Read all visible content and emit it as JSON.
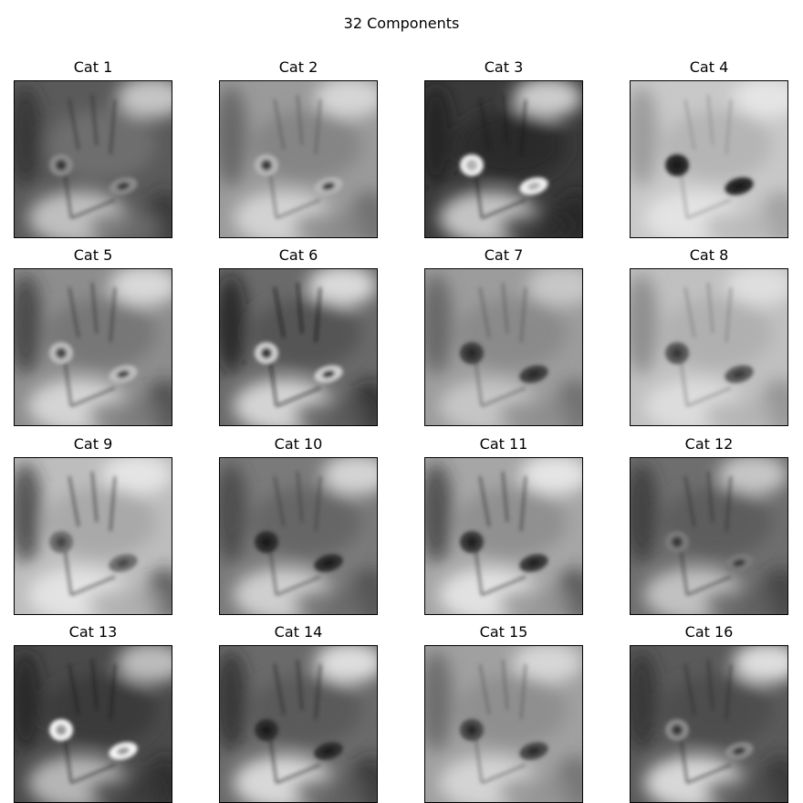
{
  "figure": {
    "title": "32 Components"
  },
  "panels": [
    {
      "label": "Cat 1",
      "tone": {
        "bg": "#5a5a5a",
        "mid": "#6e6e6e",
        "hi": "#d8d8d8",
        "lo": "#2a2a2a",
        "eye": "#8a8a8a",
        "pupil": "#3a3a3a"
      }
    },
    {
      "label": "Cat 2",
      "tone": {
        "bg": "#9a9a9a",
        "mid": "#858585",
        "hi": "#e0e0e0",
        "lo": "#555555",
        "eye": "#b5b5b5",
        "pupil": "#3d3d3d"
      }
    },
    {
      "label": "Cat 3",
      "tone": {
        "bg": "#3a3a3a",
        "mid": "#2c2c2c",
        "hi": "#e6e6e6",
        "lo": "#1a1a1a",
        "eye": "#eeeeee",
        "pupil": "#b0b0b0"
      }
    },
    {
      "label": "Cat 4",
      "tone": {
        "bg": "#c8c8c8",
        "mid": "#b5b5b5",
        "hi": "#eaeaea",
        "lo": "#8a8a8a",
        "eye": "#2a2a2a",
        "pupil": "#1a1a1a"
      }
    },
    {
      "label": "Cat 5",
      "tone": {
        "bg": "#8d8d8d",
        "mid": "#777777",
        "hi": "#e6e6e6",
        "lo": "#2f2f2f",
        "eye": "#bdbdbd",
        "pupil": "#4a4a4a"
      }
    },
    {
      "label": "Cat 6",
      "tone": {
        "bg": "#6a6a6a",
        "mid": "#555555",
        "hi": "#eeeeee",
        "lo": "#111111",
        "eye": "#cfcfcf",
        "pupil": "#3a3a3a"
      }
    },
    {
      "label": "Cat 7",
      "tone": {
        "bg": "#9c9c9c",
        "mid": "#8a8a8a",
        "hi": "#cfcfcf",
        "lo": "#555555",
        "eye": "#3f3f3f",
        "pupil": "#2a2a2a"
      }
    },
    {
      "label": "Cat 8",
      "tone": {
        "bg": "#c0c0c0",
        "mid": "#b0b0b0",
        "hi": "#e4e4e4",
        "lo": "#7a7a7a",
        "eye": "#5a5a5a",
        "pupil": "#3a3a3a"
      }
    },
    {
      "label": "Cat 9",
      "tone": {
        "bg": "#bdbdbd",
        "mid": "#a9a9a9",
        "hi": "#ececec",
        "lo": "#2a2a2a",
        "eye": "#6e6e6e",
        "pupil": "#4a4a4a"
      }
    },
    {
      "label": "Cat 10",
      "tone": {
        "bg": "#7a7a7a",
        "mid": "#666666",
        "hi": "#e4e4e4",
        "lo": "#3a3a3a",
        "eye": "#2f2f2f",
        "pupil": "#1e1e1e"
      }
    },
    {
      "label": "Cat 11",
      "tone": {
        "bg": "#a6a6a6",
        "mid": "#909090",
        "hi": "#f0f0f0",
        "lo": "#2e2e2e",
        "eye": "#3a3a3a",
        "pupil": "#222222"
      }
    },
    {
      "label": "Cat 12",
      "tone": {
        "bg": "#6e6e6e",
        "mid": "#5d5d5d",
        "hi": "#d6d6d6",
        "lo": "#2f2f2f",
        "eye": "#7a7a7a",
        "pupil": "#3a3a3a"
      }
    },
    {
      "label": "Cat 13",
      "tone": {
        "bg": "#4a4a4a",
        "mid": "#3a3a3a",
        "hi": "#d0d0d0",
        "lo": "#1a1a1a",
        "eye": "#f4f4f4",
        "pupil": "#9a9a9a"
      }
    },
    {
      "label": "Cat 14",
      "tone": {
        "bg": "#6a6a6a",
        "mid": "#5a5a5a",
        "hi": "#f2f2f2",
        "lo": "#222222",
        "eye": "#2f2f2f",
        "pupil": "#1a1a1a"
      }
    },
    {
      "label": "Cat 15",
      "tone": {
        "bg": "#a0a0a0",
        "mid": "#8f8f8f",
        "hi": "#e0e0e0",
        "lo": "#5a5a5a",
        "eye": "#4a4a4a",
        "pupil": "#2a2a2a"
      }
    },
    {
      "label": "Cat 16",
      "tone": {
        "bg": "#5a5a5a",
        "mid": "#4e4e4e",
        "hi": "#f6f6f6",
        "lo": "#2a2a2a",
        "eye": "#8a8a8a",
        "pupil": "#3a3a3a"
      }
    }
  ]
}
